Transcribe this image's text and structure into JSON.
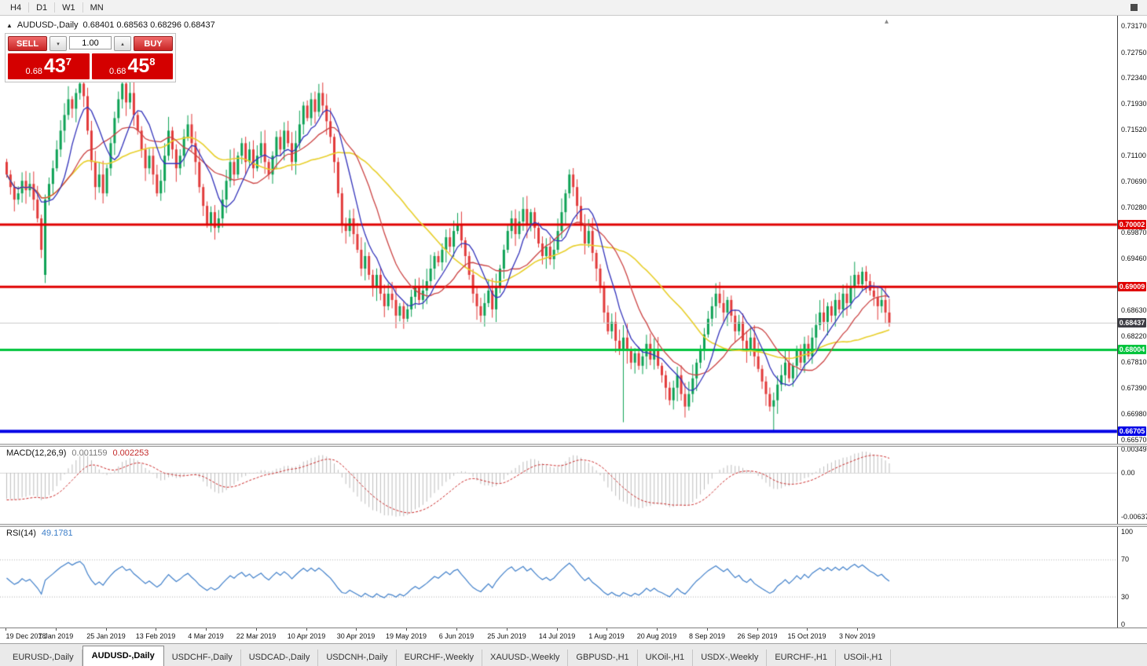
{
  "toolbar": {
    "timeframes": [
      "H4",
      "D1",
      "W1",
      "MN"
    ]
  },
  "icons": {
    "symbol_marker": "▲",
    "volume_down": "▾",
    "volume_up": "▴",
    "shift_marker": "▴"
  },
  "chart": {
    "symbol_title": "AUDUSD-,Daily",
    "ohlc": "0.68401 0.68563 0.68296 0.68437"
  },
  "trade_panel": {
    "sell": "SELL",
    "buy": "BUY",
    "volume": "1.00",
    "bid": {
      "prefix": "0.68",
      "big": "43",
      "sup": "7"
    },
    "ask": {
      "prefix": "0.68",
      "big": "45",
      "sup": "8"
    }
  },
  "colors": {
    "up": "#0da255",
    "down": "#e23b3b",
    "macd_hist": "#bdbdbd",
    "macd_signal": "#cc2a2a",
    "rsi_line": "#3f7fca",
    "current_line": "#c9c9c9"
  },
  "price_axis": {
    "labels": [
      "0.73170",
      "0.72750",
      "0.72340",
      "0.71930",
      "0.71520",
      "0.71100",
      "0.70690",
      "0.70280",
      "0.69870",
      "0.69460",
      "0.68630",
      "0.68220",
      "0.67810",
      "0.67390",
      "0.66980",
      "0.66570"
    ]
  },
  "axis_tags": [
    {
      "label": "0.70002",
      "price": 0.70002,
      "bg": "#e00000",
      "current": false
    },
    {
      "label": "0.69009",
      "price": 0.69009,
      "bg": "#e00000",
      "current": false
    },
    {
      "label": "0.68437",
      "price": 0.68437,
      "bg": "#3d3d44",
      "current": true
    },
    {
      "label": "0.68004",
      "price": 0.68004,
      "bg": "#00c43c",
      "current": false
    },
    {
      "label": "0.66705",
      "price": 0.66705,
      "bg": "#0000e6",
      "current": false
    }
  ],
  "levels": [
    {
      "price": 0.70002,
      "color": "#e00000",
      "width": 3
    },
    {
      "price": 0.69009,
      "color": "#e00000",
      "width": 3
    },
    {
      "price": 0.68004,
      "color": "#00c43c",
      "width": 3
    },
    {
      "price": 0.66705,
      "color": "#0000e6",
      "width": 4
    }
  ],
  "current_price": {
    "price": 0.68437,
    "label": "0.68437"
  },
  "dates": [
    "19 Dec 2018",
    "7 Jan 2019",
    "25 Jan 2019",
    "13 Feb 2019",
    "4 Mar 2019",
    "22 Mar 2019",
    "10 Apr 2019",
    "30 Apr 2019",
    "19 May 2019",
    "6 Jun 2019",
    "25 Jun 2019",
    "14 Jul 2019",
    "1 Aug 2019",
    "20 Aug 2019",
    "8 Sep 2019",
    "26 Sep 2019",
    "15 Oct 2019",
    "3 Nov 2019"
  ],
  "macd_panel": {
    "label": "MACD(12,26,9)",
    "main_value": "0.001159",
    "signal_value": "0.002253",
    "fast": 12,
    "slow": 26,
    "signal": 9,
    "axis": [
      {
        "v": 0.00349,
        "label": "0.00349"
      },
      {
        "v": 0,
        "label": "0.00"
      },
      {
        "v": -0.00637,
        "label": "-0.00637"
      }
    ]
  },
  "rsi_panel": {
    "label": "RSI(14)",
    "value": "49.1781",
    "period": 14,
    "levels": [
      70,
      30
    ],
    "axis": [
      {
        "v": 100,
        "label": "100"
      },
      {
        "v": 70,
        "label": "70"
      },
      {
        "v": 30,
        "label": "30"
      },
      {
        "v": 0,
        "label": "0"
      }
    ]
  },
  "tabs": [
    "EURUSD-,Daily",
    "AUDUSD-,Daily",
    "USDCHF-,Daily",
    "USDCAD-,Daily",
    "USDCNH-,Daily",
    "EURCHF-,Weekly",
    "XAUUSD-,Weekly",
    "GBPUSD-,H1",
    "UKOil-,H1",
    "USDX-,Weekly",
    "EURCHF-,H1",
    "USOil-,H1"
  ],
  "active_tab": 1,
  "chart_data": {
    "type": "candlestick",
    "symbol": "AUDUSD",
    "timeframe": "Daily",
    "title": "AUDUSD-,Daily",
    "ohlc_current": {
      "open": 0.68401,
      "high": 0.68563,
      "low": 0.68296,
      "close": 0.68437
    },
    "y_axis_range": [
      0.66507,
      0.73333
    ],
    "x_range": [
      "19 Dec 2018",
      "3 Nov 2019"
    ],
    "levels": {
      "resistance": [
        0.70002,
        0.69009
      ],
      "support_green": 0.68004,
      "support_blue": 0.66705,
      "current_bid": 0.68437
    },
    "moving_averages": [
      {
        "period": 8,
        "color": "#3333bb"
      },
      {
        "period": 16,
        "color": "#cc4444"
      },
      {
        "period": 34,
        "color": "#e8cf2a"
      }
    ],
    "first_open": 0.71,
    "special_opens": {
      "10": 0.692
    },
    "special_lows": {
      "10": 0.6907,
      "160": 0.6685,
      "199": 0.6672
    },
    "closes": [
      0.708,
      0.706,
      0.704,
      0.705,
      0.707,
      0.7055,
      0.7065,
      0.704,
      0.701,
      0.696,
      0.704,
      0.7065,
      0.709,
      0.712,
      0.715,
      0.7175,
      0.72,
      0.7185,
      0.721,
      0.7225,
      0.7205,
      0.715,
      0.71,
      0.706,
      0.708,
      0.705,
      0.709,
      0.713,
      0.717,
      0.72,
      0.7225,
      0.7195,
      0.721,
      0.7175,
      0.715,
      0.712,
      0.709,
      0.711,
      0.708,
      0.705,
      0.707,
      0.711,
      0.715,
      0.712,
      0.709,
      0.711,
      0.714,
      0.716,
      0.713,
      0.71,
      0.706,
      0.703,
      0.7,
      0.702,
      0.6995,
      0.701,
      0.704,
      0.707,
      0.71,
      0.708,
      0.711,
      0.713,
      0.71,
      0.712,
      0.709,
      0.711,
      0.713,
      0.71,
      0.708,
      0.711,
      0.714,
      0.712,
      0.715,
      0.713,
      0.71,
      0.713,
      0.716,
      0.719,
      0.717,
      0.72,
      0.718,
      0.721,
      0.719,
      0.7165,
      0.714,
      0.71,
      0.705,
      0.7,
      0.699,
      0.701,
      0.6985,
      0.696,
      0.693,
      0.695,
      0.692,
      0.69,
      0.692,
      0.689,
      0.687,
      0.689,
      0.688,
      0.6855,
      0.687,
      0.685,
      0.6865,
      0.6885,
      0.69,
      0.688,
      0.6895,
      0.691,
      0.693,
      0.695,
      0.694,
      0.696,
      0.698,
      0.6965,
      0.699,
      0.7,
      0.6975,
      0.695,
      0.692,
      0.689,
      0.687,
      0.6855,
      0.6875,
      0.6895,
      0.6865,
      0.69,
      0.693,
      0.696,
      0.699,
      0.701,
      0.6985,
      0.7005,
      0.7025,
      0.7,
      0.702,
      0.6995,
      0.697,
      0.695,
      0.6965,
      0.6945,
      0.696,
      0.699,
      0.702,
      0.705,
      0.708,
      0.706,
      0.703,
      0.7,
      0.697,
      0.699,
      0.6955,
      0.693,
      0.69,
      0.686,
      0.683,
      0.6845,
      0.6815,
      0.68,
      0.682,
      0.68,
      0.678,
      0.6795,
      0.6775,
      0.679,
      0.681,
      0.6785,
      0.68,
      0.6775,
      0.676,
      0.674,
      0.672,
      0.674,
      0.676,
      0.673,
      0.671,
      0.673,
      0.6755,
      0.678,
      0.68,
      0.6825,
      0.685,
      0.687,
      0.689,
      0.6875,
      0.686,
      0.688,
      0.6855,
      0.683,
      0.6845,
      0.6815,
      0.68,
      0.682,
      0.679,
      0.677,
      0.675,
      0.673,
      0.671,
      0.672,
      0.6745,
      0.676,
      0.678,
      0.6755,
      0.6775,
      0.68,
      0.678,
      0.681,
      0.679,
      0.682,
      0.684,
      0.686,
      0.6845,
      0.687,
      0.6855,
      0.688,
      0.6865,
      0.689,
      0.6875,
      0.69,
      0.692,
      0.6905,
      0.6925,
      0.691,
      0.6895,
      0.6885,
      0.687,
      0.688,
      0.686,
      0.68437
    ]
  }
}
